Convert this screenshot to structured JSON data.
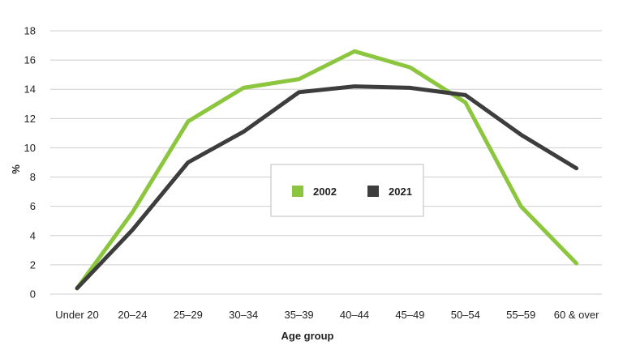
{
  "chart_data": {
    "type": "line",
    "xlabel": "Age group",
    "ylabel": "%",
    "ylim": [
      0,
      18
    ],
    "yticks": [
      0,
      2,
      4,
      6,
      8,
      10,
      12,
      14,
      16,
      18
    ],
    "grid": true,
    "legend_position": "center",
    "categories": [
      "Under 20",
      "20–24",
      "25–29",
      "30–34",
      "35–39",
      "40–44",
      "45–49",
      "50–54",
      "55–59",
      "60 & over"
    ],
    "series": [
      {
        "name": "2002",
        "color": "#8cc63f",
        "values": [
          0.4,
          5.6,
          11.8,
          14.1,
          14.7,
          16.6,
          15.5,
          13.1,
          6.0,
          2.1
        ]
      },
      {
        "name": "2021",
        "color": "#3d3d3d",
        "values": [
          0.4,
          4.4,
          9.0,
          11.1,
          13.8,
          14.2,
          14.1,
          13.6,
          10.9,
          8.6
        ]
      }
    ]
  }
}
